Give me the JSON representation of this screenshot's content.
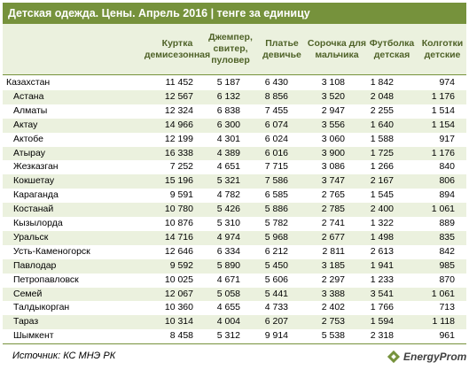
{
  "title": "Детская одежда. Цены. Апрель 2016 | тенге за единицу",
  "headers": [
    "Куртка\nдемисезонная",
    "Джемпер,\nсвитер,\nпуловер",
    "Платье\nдевичье",
    "Сорочка для\nмальчика",
    "Футболка\nдетская",
    "Колготки\nдетские"
  ],
  "rows": [
    {
      "name": "Казахстан",
      "values": [
        "11 452",
        "5 187",
        "6 430",
        "3 108",
        "1 842",
        "974"
      ]
    },
    {
      "name": "Астана",
      "values": [
        "12 567",
        "6 132",
        "8 856",
        "3 520",
        "2 048",
        "1 176"
      ]
    },
    {
      "name": "Алматы",
      "values": [
        "12 324",
        "6 838",
        "7 455",
        "2 947",
        "2 255",
        "1 514"
      ]
    },
    {
      "name": "Актау",
      "values": [
        "14 966",
        "6 300",
        "6 074",
        "3 556",
        "1 640",
        "1 154"
      ]
    },
    {
      "name": "Актобе",
      "values": [
        "12 199",
        "4 301",
        "6 024",
        "3 060",
        "1 588",
        "917"
      ]
    },
    {
      "name": "Атырау",
      "values": [
        "16 338",
        "4 389",
        "6 016",
        "3 900",
        "1 725",
        "1 176"
      ]
    },
    {
      "name": "Жезказган",
      "values": [
        "7 252",
        "4 651",
        "7 715",
        "3 086",
        "1 266",
        "840"
      ]
    },
    {
      "name": "Кокшетау",
      "values": [
        "15 196",
        "5 321",
        "7 586",
        "3 747",
        "2 167",
        "806"
      ]
    },
    {
      "name": "Караганда",
      "values": [
        "9 591",
        "4 782",
        "6 585",
        "2 765",
        "1 545",
        "894"
      ]
    },
    {
      "name": "Костанай",
      "values": [
        "10 780",
        "5 426",
        "5 886",
        "2 785",
        "2 400",
        "1 061"
      ]
    },
    {
      "name": "Кызылорда",
      "values": [
        "10 876",
        "5 310",
        "5 782",
        "2 741",
        "1 322",
        "889"
      ]
    },
    {
      "name": "Уральск",
      "values": [
        "14 716",
        "4 974",
        "5 968",
        "2 677",
        "1 498",
        "835"
      ]
    },
    {
      "name": "Усть-Каменогорск",
      "values": [
        "12 646",
        "6 334",
        "6 212",
        "2 811",
        "2 613",
        "842"
      ]
    },
    {
      "name": "Павлодар",
      "values": [
        "9 592",
        "5 890",
        "5 450",
        "3 185",
        "1 941",
        "985"
      ]
    },
    {
      "name": "Петропавловск",
      "values": [
        "10 025",
        "4 671",
        "5 606",
        "2 297",
        "1 233",
        "870"
      ]
    },
    {
      "name": "Семей",
      "values": [
        "12 067",
        "5 058",
        "5 441",
        "3 388",
        "3 541",
        "1 061"
      ]
    },
    {
      "name": "Талдыкорган",
      "values": [
        "10 360",
        "4 655",
        "4 733",
        "2 402",
        "1 766",
        "713"
      ]
    },
    {
      "name": "Тараз",
      "values": [
        "10 314",
        "4 004",
        "6 207",
        "2 753",
        "1 594",
        "1 118"
      ]
    },
    {
      "name": "Шымкент",
      "values": [
        "8 458",
        "5 312",
        "9 914",
        "5 538",
        "2 318",
        "961"
      ]
    }
  ],
  "source": "Источник: КС МНЭ РК",
  "logo_text": "EnergyProm",
  "logo_icon": "energy-diamond-icon",
  "colors": {
    "accent": "#76923c",
    "header_bg": "#ebf1de",
    "header_text": "#4f6228"
  }
}
